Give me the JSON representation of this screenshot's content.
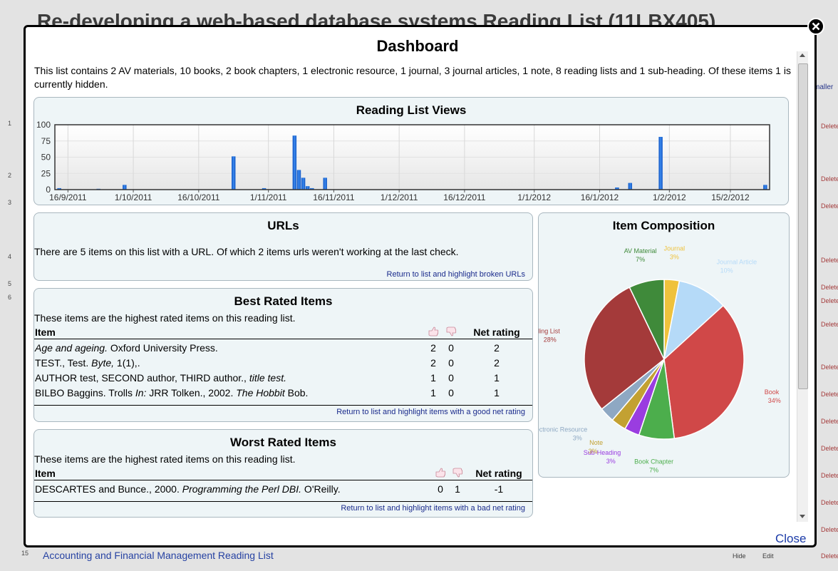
{
  "background": {
    "title": "Re-developing a web-based database systems Reading List (11LBX405)",
    "top_right_fragment": "maller",
    "row_numbers": [
      "1",
      "2",
      "3",
      "4",
      "5",
      "6"
    ],
    "side_link": "Delete",
    "bottom_item_number": "15",
    "bottom_item": "Accounting and Financial Management Reading List",
    "hide": "Hide",
    "edit": "Edit"
  },
  "dialog": {
    "title": "Dashboard",
    "intro": "This list contains 2 AV materials, 10 books, 2 book chapters, 1 electronic resource, 1 journal, 3 journal articles, 1 note, 8 reading lists and 1 sub-heading. Of these items 1 is currently hidden.",
    "close": "Close"
  },
  "chart_data": [
    {
      "type": "bar",
      "title": "Reading List Views",
      "x": [
        "2011-09-14",
        "2011-09-23",
        "2011-09-29",
        "2011-10-24",
        "2011-10-31",
        "2011-11-07",
        "2011-11-08",
        "2011-11-09",
        "2011-11-10",
        "2011-11-11",
        "2011-11-14",
        "2012-01-20",
        "2012-01-23",
        "2012-01-30",
        "2012-02-23"
      ],
      "values": [
        2,
        1,
        7,
        51,
        2,
        83,
        30,
        18,
        5,
        2,
        18,
        3,
        10,
        81,
        7
      ],
      "color": "#1f6fd6",
      "xlim": [
        "2011-09-13",
        "2012-02-24"
      ],
      "xticks": [
        {
          "value": "2011-09-16",
          "label": "16/9/2011"
        },
        {
          "value": "2011-10-01",
          "label": "1/10/2011"
        },
        {
          "value": "2011-10-16",
          "label": "16/10/2011"
        },
        {
          "value": "2011-11-01",
          "label": "1/11/2011"
        },
        {
          "value": "2011-11-16",
          "label": "16/11/2011"
        },
        {
          "value": "2011-12-01",
          "label": "1/12/2011"
        },
        {
          "value": "2011-12-16",
          "label": "16/12/2011"
        },
        {
          "value": "2012-01-01",
          "label": "1/1/2012"
        },
        {
          "value": "2012-01-16",
          "label": "16/1/2012"
        },
        {
          "value": "2012-02-01",
          "label": "1/2/2012"
        },
        {
          "value": "2012-02-15",
          "label": "15/2/2012"
        }
      ],
      "ylim": [
        0,
        100
      ],
      "yticks": [
        0,
        25,
        50,
        75,
        100
      ],
      "grid": true
    },
    {
      "type": "pie",
      "title": "Item Composition",
      "categories": [
        "Journal",
        "Journal Article",
        "Book",
        "Book Chapter",
        "Sub-Heading",
        "Note",
        "Electronic Resource",
        "Reading List",
        "AV Material"
      ],
      "values": [
        3,
        10,
        34,
        7,
        3,
        3,
        3,
        28,
        7
      ],
      "value_labels": [
        "3%",
        "10%",
        "34%",
        "7%",
        "3%",
        "3%",
        "3%",
        "28%",
        "7%"
      ],
      "colors": [
        "#efc23c",
        "#b5daf8",
        "#d04848",
        "#4cae4c",
        "#9a3de0",
        "#c3a132",
        "#8ea8c3",
        "#a43a3a",
        "#3f8a3a"
      ]
    }
  ],
  "urls": {
    "title": "URLs",
    "text": "There are 5 items on this list with a URL. Of which 2 items urls weren't working at the last check.",
    "link": "Return to list and highlight broken URLs"
  },
  "best_rated": {
    "title": "Best Rated Items",
    "description": "These items are the highest rated items on this reading list.",
    "columns": [
      "Item",
      "Net rating"
    ],
    "rows": [
      [
        [
          {
            "text": "Age and ageing.",
            "italic": true
          },
          {
            "text": " Oxford University Press."
          }
        ],
        2,
        0,
        2
      ],
      [
        [
          {
            "text": "TEST., Test. "
          },
          {
            "text": "Byte,",
            "italic": true
          },
          {
            "text": " 1(1),."
          }
        ],
        2,
        0,
        2
      ],
      [
        [
          {
            "text": "AUTHOR test, SECOND author, THIRD author., "
          },
          {
            "text": "title test.",
            "italic": true
          }
        ],
        1,
        0,
        1
      ],
      [
        [
          {
            "text": "BILBO Baggins. Trolls "
          },
          {
            "text": "In:",
            "italic": true
          },
          {
            "text": " JRR Tolken., 2002. "
          },
          {
            "text": "The Hobbit",
            "italic": true
          },
          {
            "text": " Bob."
          }
        ],
        1,
        0,
        1
      ]
    ],
    "link": "Return to list and highlight items with a good net rating"
  },
  "worst_rated": {
    "title": "Worst Rated Items",
    "description": "These items are the highest rated items on this reading list.",
    "columns": [
      "Item",
      "Net rating"
    ],
    "rows": [
      [
        [
          {
            "text": "DESCARTES and Bunce., 2000. "
          },
          {
            "text": "Programming the Perl DBI.",
            "italic": true
          },
          {
            "text": " O'Reilly."
          }
        ],
        0,
        1,
        -1
      ]
    ],
    "link": "Return to list and highlight items with a bad net rating"
  }
}
